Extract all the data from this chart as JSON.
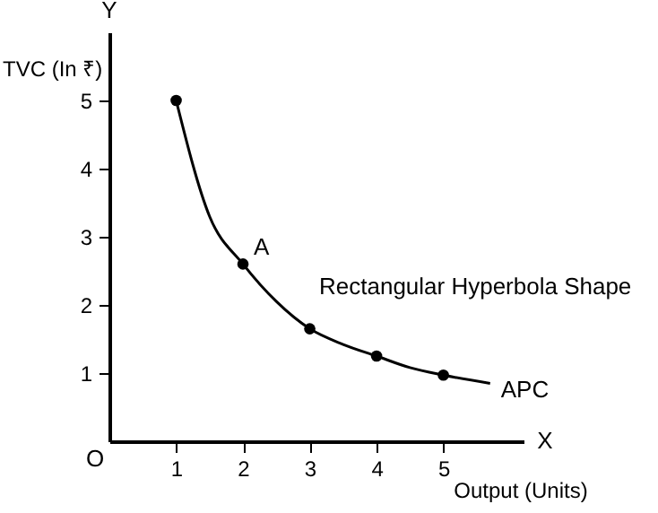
{
  "chart_data": {
    "type": "line",
    "xlabel": "Output (Units)",
    "ylabel": "TVC (In ₹)",
    "xlim": [
      0,
      6.2
    ],
    "ylim": [
      0,
      6
    ],
    "xticks": [
      1,
      2,
      3,
      4,
      5
    ],
    "yticks": [
      1,
      2,
      3,
      4,
      5
    ],
    "series": [
      {
        "name": "APC",
        "color": "#000000",
        "marker": "none",
        "x": [
          1,
          1.5,
          2,
          2.5,
          3,
          3.5,
          4,
          4.5,
          5,
          5.7
        ],
        "values": [
          5,
          3.3,
          2.6,
          2.05,
          1.65,
          1.42,
          1.25,
          1.08,
          0.97,
          0.85
        ]
      },
      {
        "type": "scatter",
        "color": "#000000",
        "marker": "circle",
        "x": [
          1,
          2,
          3,
          4,
          5
        ],
        "values": [
          5,
          2.6,
          1.65,
          1.25,
          0.97
        ]
      }
    ],
    "annotations": [
      {
        "text": "A",
        "x": 2,
        "y": 2.6
      },
      "Rectangular Hyperbola Shape",
      "Y",
      "X",
      "O"
    ]
  }
}
